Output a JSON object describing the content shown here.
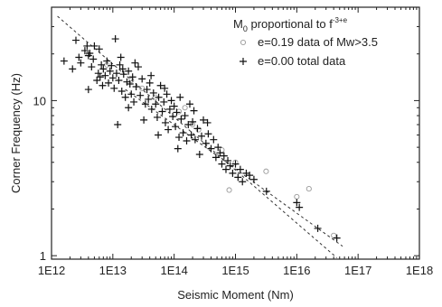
{
  "chart_data": {
    "type": "scatter",
    "xscale": "log",
    "yscale": "log",
    "xlim": [
      1000000000000.0,
      1e+18
    ],
    "ylim": [
      0.95,
      40
    ],
    "xlabel": "Seismic Moment (Nm)",
    "ylabel": "Corner Frequency (Hz)",
    "x_tick_labels": [
      "1E12",
      "1E13",
      "1E14",
      "1E15",
      "1E16",
      "1E17",
      "1E18"
    ],
    "x_ticks": [
      1000000000000.0,
      10000000000000.0,
      100000000000000.0,
      1000000000000000.0,
      1e+16,
      1e+17,
      1e+18
    ],
    "y_tick_labels": [
      "1",
      "10"
    ],
    "y_ticks": [
      1,
      10
    ],
    "grid": false,
    "legend_position": "top-right",
    "legend_title": {
      "base": "M",
      "sub": "0",
      "mid": " proportional to f",
      "sup": "-3+e"
    },
    "series": [
      {
        "name": "e=0.19 data of Mw>3.5",
        "marker": "circle",
        "points": [
          [
            790000000000000.0,
            2.65
          ],
          [
            1.58e+16,
            2.7
          ],
          [
            3160000000000000.0,
            3.5
          ],
          [
            1000000000000000.0,
            4.0
          ],
          [
            250000000000000.0,
            6.5
          ],
          [
            120000000000000.0,
            8.5
          ],
          [
            50000000000000.0,
            10.5
          ],
          [
            20000000000000.0,
            13.5
          ],
          [
            8000000000000.0,
            17.0
          ],
          [
            4000000000000.0,
            20.0
          ],
          [
            200000000000000.0,
            7.0
          ],
          [
            600000000000000.0,
            4.8
          ],
          [
            1e+16,
            2.4
          ],
          [
            4e+16,
            1.35
          ],
          [
            30000000000000.0,
            12.0
          ],
          [
            150000000000000.0,
            9.0
          ]
        ]
      },
      {
        "name": "e=0.00 total data",
        "marker": "plus",
        "points": [
          [
            2500000000000.0,
            24.5
          ],
          [
            2800000000000.0,
            19.0
          ],
          [
            3000000000000.0,
            17.5
          ],
          [
            3500000000000.0,
            21.0
          ],
          [
            3800000000000.0,
            22.5
          ],
          [
            4000000000000.0,
            11.8
          ],
          [
            4200000000000.0,
            20.2
          ],
          [
            4500000000000.0,
            16.5
          ],
          [
            4800000000000.0,
            18.5
          ],
          [
            5000000000000.0,
            22.5
          ],
          [
            5500000000000.0,
            13.5
          ],
          [
            5800000000000.0,
            15.0
          ],
          [
            6000000000000.0,
            21.5
          ],
          [
            6500000000000.0,
            17.0
          ],
          [
            6800000000000.0,
            12.5
          ],
          [
            7000000000000.0,
            16.0
          ],
          [
            7500000000000.0,
            14.5
          ],
          [
            8000000000000.0,
            18.0
          ],
          [
            8500000000000.0,
            13.0
          ],
          [
            9000000000000.0,
            15.5
          ],
          [
            9500000000000.0,
            16.8
          ],
          [
            10000000000000.0,
            14.0
          ],
          [
            10500000000000.0,
            12.0
          ],
          [
            11000000000000.0,
            25.0
          ],
          [
            11500000000000.0,
            15.0
          ],
          [
            12000000000000.0,
            7.0
          ],
          [
            12500000000000.0,
            13.5
          ],
          [
            13000000000000.0,
            17.0
          ],
          [
            14000000000000.0,
            11.5
          ],
          [
            14500000000000.0,
            16.0
          ],
          [
            15000000000000.0,
            14.8
          ],
          [
            16000000000000.0,
            10.5
          ],
          [
            17000000000000.0,
            13.2
          ],
          [
            18000000000000.0,
            15.5
          ],
          [
            19000000000000.0,
            12.8
          ],
          [
            20000000000000.0,
            11.0
          ],
          [
            21000000000000.0,
            14.2
          ],
          [
            22000000000000.0,
            9.8
          ],
          [
            24000000000000.0,
            12.3
          ],
          [
            26000000000000.0,
            16.5
          ],
          [
            28000000000000.0,
            10.8
          ],
          [
            30000000000000.0,
            13.8
          ],
          [
            32000000000000.0,
            7.5
          ],
          [
            34000000000000.0,
            9.5
          ],
          [
            36000000000000.0,
            11.8
          ],
          [
            38000000000000.0,
            10.2
          ],
          [
            40000000000000.0,
            13.0
          ],
          [
            43000000000000.0,
            8.8
          ],
          [
            46000000000000.0,
            11.2
          ],
          [
            50000000000000.0,
            9.5
          ],
          [
            53000000000000.0,
            7.8
          ],
          [
            56000000000000.0,
            10.5
          ],
          [
            60000000000000.0,
            12.5
          ],
          [
            64000000000000.0,
            8.5
          ],
          [
            68000000000000.0,
            9.8
          ],
          [
            72000000000000.0,
            7.2
          ],
          [
            76000000000000.0,
            11.0
          ],
          [
            80000000000000.0,
            6.5
          ],
          [
            85000000000000.0,
            8.8
          ],
          [
            90000000000000.0,
            10.0
          ],
          [
            95000000000000.0,
            7.9
          ],
          [
            100000000000000.0,
            9.2
          ],
          [
            105000000000000.0,
            6.8
          ],
          [
            110000000000000.0,
            8.4
          ],
          [
            120000000000000.0,
            5.8
          ],
          [
            130000000000000.0,
            7.6
          ],
          [
            140000000000000.0,
            6.2
          ],
          [
            150000000000000.0,
            8.0
          ],
          [
            160000000000000.0,
            5.5
          ],
          [
            170000000000000.0,
            7.0
          ],
          [
            180000000000000.0,
            9.5
          ],
          [
            190000000000000.0,
            6.0
          ],
          [
            200000000000000.0,
            7.3
          ],
          [
            220000000000000.0,
            5.6
          ],
          [
            240000000000000.0,
            6.6
          ],
          [
            260000000000000.0,
            4.5
          ],
          [
            280000000000000.0,
            5.9
          ],
          [
            300000000000000.0,
            7.5
          ],
          [
            330000000000000.0,
            5.3
          ],
          [
            360000000000000.0,
            6.1
          ],
          [
            400000000000000.0,
            4.9
          ],
          [
            440000000000000.0,
            5.6
          ],
          [
            480000000000000.0,
            4.3
          ],
          [
            520000000000000.0,
            5.0
          ],
          [
            560000000000000.0,
            4.6
          ],
          [
            600000000000000.0,
            3.9
          ],
          [
            650000000000000.0,
            4.4
          ],
          [
            700000000000000.0,
            3.6
          ],
          [
            750000000000000.0,
            4.1
          ],
          [
            820000000000000.0,
            3.8
          ],
          [
            900000000000000.0,
            3.4
          ],
          [
            1000000000000000.0,
            3.9
          ],
          [
            1100000000000000.0,
            3.2
          ],
          [
            1200000000000000.0,
            3.6
          ],
          [
            1300000000000000.0,
            3.0
          ],
          [
            1500000000000000.0,
            3.4
          ],
          [
            1700000000000000.0,
            3.3
          ],
          [
            2000000000000000.0,
            3.1
          ],
          [
            3200000000000000.0,
            2.6
          ],
          [
            1e+16,
            2.2
          ],
          [
            1.1e+16,
            2.05
          ],
          [
            2.2e+16,
            1.5
          ],
          [
            4.5e+16,
            1.3
          ],
          [
            4000000000000.0,
            19.5
          ],
          [
            6200000000000.0,
            14.2
          ],
          [
            13500000000000.0,
            19.0
          ],
          [
            23000000000000.0,
            17.5
          ],
          [
            42000000000000.0,
            14.5
          ],
          [
            70000000000000.0,
            12.0
          ],
          [
            125000000000000.0,
            10.5
          ],
          [
            210000000000000.0,
            8.6
          ],
          [
            350000000000000.0,
            7.2
          ],
          [
            18000000000000.0,
            9.0
          ],
          [
            55000000000000.0,
            6.0
          ],
          [
            115000000000000.0,
            4.9
          ],
          [
            1600000000000.0,
            18.0
          ],
          [
            2200000000000.0,
            16.0
          ]
        ]
      }
    ],
    "fit_lines": [
      {
        "style": "dashed",
        "points": [
          [
            1250000000000.0,
            35.0
          ],
          [
            4.5e+16,
            0.97
          ]
        ]
      },
      {
        "style": "dashed",
        "points": [
          [
            16000000000000.0,
            11.8
          ],
          [
            5.6e+16,
            1.15
          ]
        ]
      }
    ]
  }
}
